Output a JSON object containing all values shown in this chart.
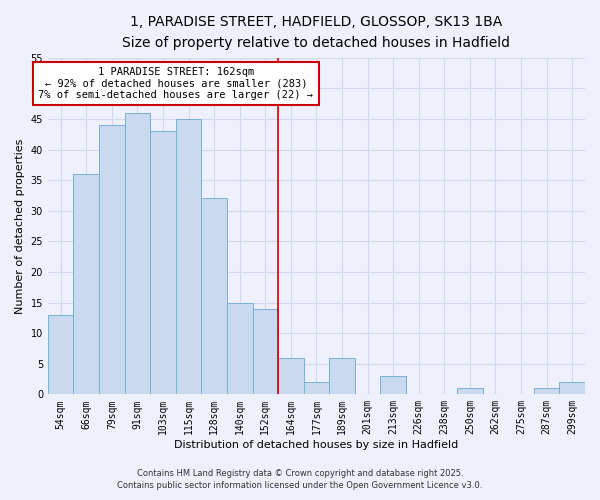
{
  "title1": "1, PARADISE STREET, HADFIELD, GLOSSOP, SK13 1BA",
  "title2": "Size of property relative to detached houses in Hadfield",
  "xlabel": "Distribution of detached houses by size in Hadfield",
  "ylabel": "Number of detached properties",
  "categories": [
    "54sqm",
    "66sqm",
    "79sqm",
    "91sqm",
    "103sqm",
    "115sqm",
    "128sqm",
    "140sqm",
    "152sqm",
    "164sqm",
    "177sqm",
    "189sqm",
    "201sqm",
    "213sqm",
    "226sqm",
    "238sqm",
    "250sqm",
    "262sqm",
    "275sqm",
    "287sqm",
    "299sqm"
  ],
  "values": [
    13,
    36,
    44,
    46,
    43,
    45,
    32,
    15,
    14,
    6,
    2,
    6,
    0,
    3,
    0,
    0,
    1,
    0,
    0,
    1,
    2
  ],
  "bar_color": "#c9d9ef",
  "bar_edge_color": "#7bafd4",
  "property_line_x": 8.5,
  "annotation_line1": "1 PARADISE STREET: 162sqm",
  "annotation_line2": "← 92% of detached houses are smaller (283)",
  "annotation_line3": "7% of semi-detached houses are larger (22) →",
  "annotation_box_edge": "#cc0000",
  "annotation_line_color": "#cc0000",
  "ylim": [
    0,
    55
  ],
  "yticks": [
    0,
    5,
    10,
    15,
    20,
    25,
    30,
    35,
    40,
    45,
    50,
    55
  ],
  "background_color": "#eef1fb",
  "grid_color": "#d0d8ee",
  "footer1": "Contains HM Land Registry data © Crown copyright and database right 2025.",
  "footer2": "Contains public sector information licensed under the Open Government Licence v3.0.",
  "title_fontsize": 10,
  "subtitle_fontsize": 9,
  "axis_label_fontsize": 8,
  "tick_fontsize": 7,
  "annotation_fontsize": 7.5,
  "footer_fontsize": 6
}
